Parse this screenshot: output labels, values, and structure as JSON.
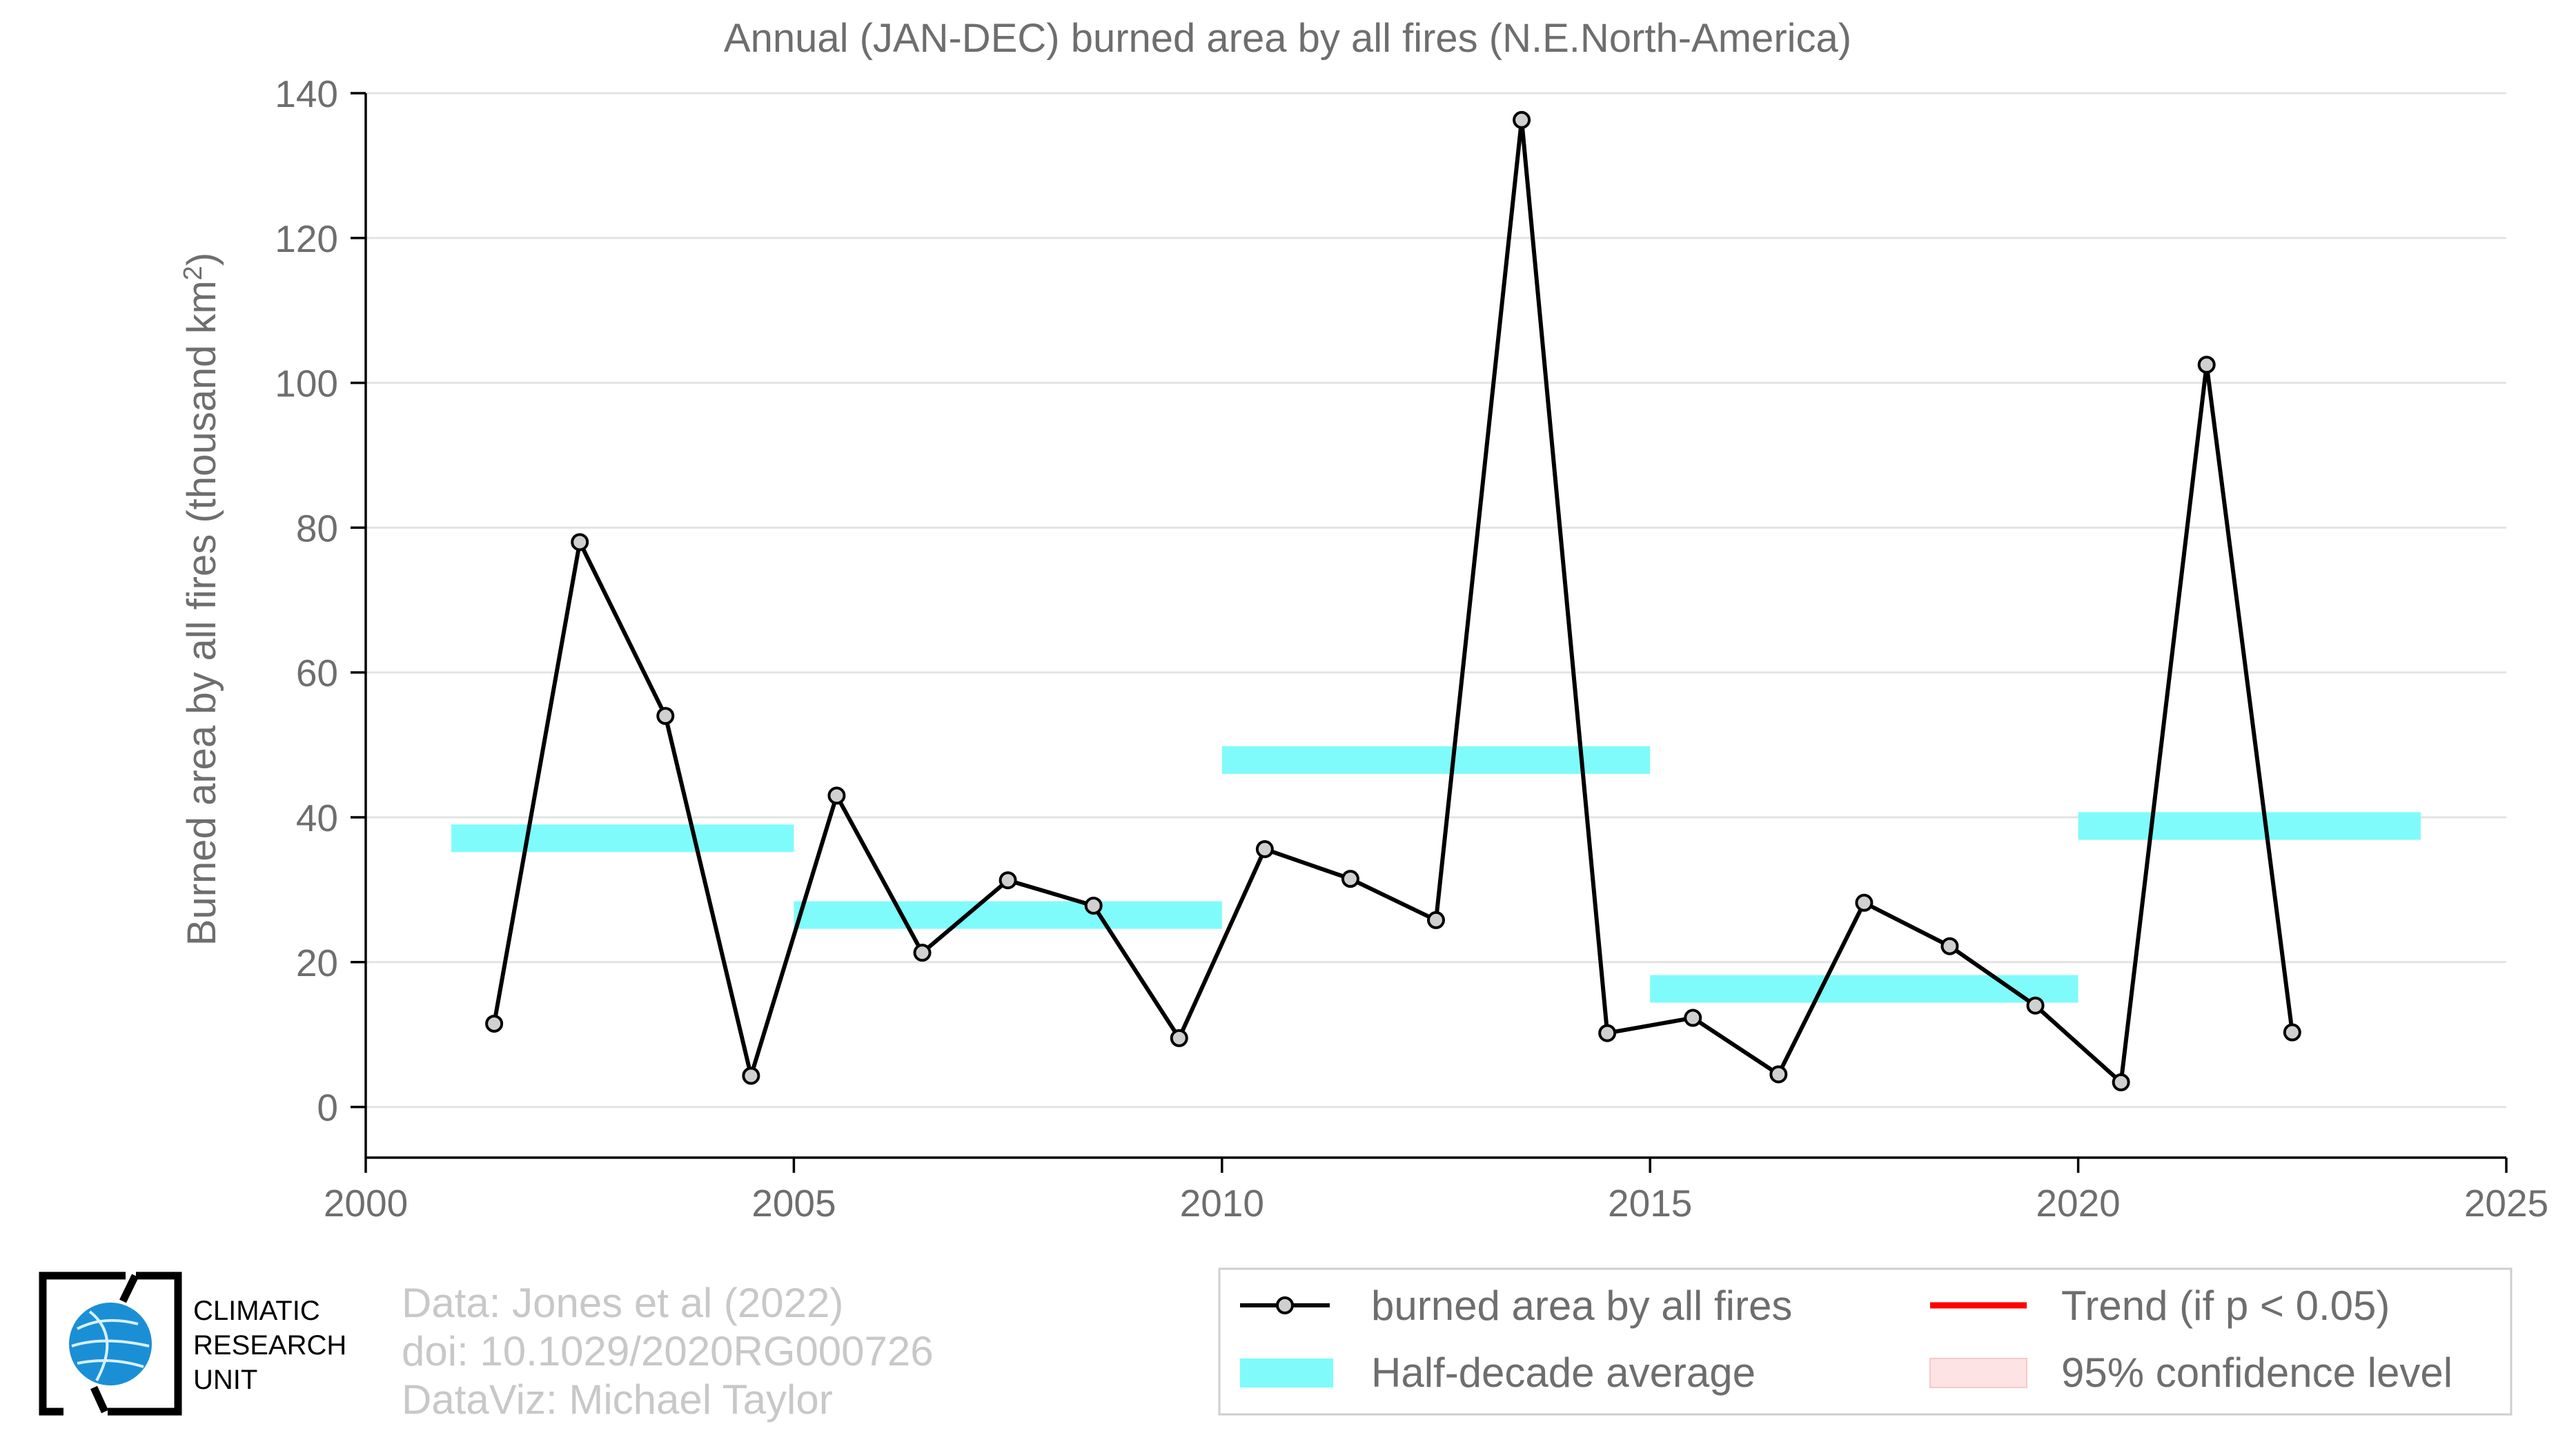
{
  "chart_data": {
    "type": "line",
    "title": "Annual (JAN-DEC) burned area by all fires (N.E.North-America)",
    "ylabel_main": "Burned area by all fires (thousand km",
    "ylabel_sup": "2",
    "ylabel_end": ")",
    "xlim": [
      2000,
      2025
    ],
    "ylim": [
      -7,
      140
    ],
    "xticks": [
      2000,
      2005,
      2010,
      2015,
      2020,
      2025
    ],
    "xtick_labels": [
      "2000",
      "2005",
      "2010",
      "2015",
      "2020",
      "2025"
    ],
    "yticks": [
      0,
      20,
      40,
      60,
      80,
      100,
      120,
      140
    ],
    "ytick_labels": [
      "0",
      "20",
      "40",
      "60",
      "80",
      "100",
      "120",
      "140"
    ],
    "grid": true,
    "series": [
      {
        "name": "burned area by all fires",
        "color": "#000000",
        "marker_fill": "#d0d0d0",
        "x": [
          2001.5,
          2002.5,
          2003.5,
          2004.5,
          2005.5,
          2006.5,
          2007.5,
          2008.5,
          2009.5,
          2010.5,
          2011.5,
          2012.5,
          2013.5,
          2014.5,
          2015.5,
          2016.5,
          2017.5,
          2018.5,
          2019.5,
          2020.5,
          2021.5,
          2022.5
        ],
        "y": [
          11.5,
          78,
          54,
          4.3,
          43,
          21.3,
          31.3,
          27.8,
          9.5,
          35.6,
          31.5,
          25.8,
          136.3,
          10.2,
          12.3,
          4.5,
          28.2,
          22.2,
          14,
          3.4,
          102.5,
          10.3
        ]
      }
    ],
    "half_decade_average": {
      "name": "Half-decade average",
      "color": "#7ffbfb",
      "segments": [
        {
          "x0": 2001,
          "x1": 2005,
          "y": 37.1
        },
        {
          "x0": 2005,
          "x1": 2010,
          "y": 26.5
        },
        {
          "x0": 2010,
          "x1": 2015,
          "y": 47.9
        },
        {
          "x0": 2015,
          "x1": 2020,
          "y": 16.3
        },
        {
          "x0": 2020,
          "x1": 2024,
          "y": 38.8
        }
      ]
    },
    "legend": {
      "placement": "bottom-right",
      "items": [
        {
          "label": "burned area by all fires",
          "kind": "line-marker",
          "color": "#000000"
        },
        {
          "label": "Trend (if p < 0.05)",
          "kind": "line",
          "color": "#ff0000"
        },
        {
          "label": "Half-decade average",
          "kind": "band",
          "color": "#7ffbfb"
        },
        {
          "label": "95% confidence level",
          "kind": "band",
          "color": "#fde3e3"
        }
      ]
    }
  },
  "credits": {
    "line1": "Data: Jones et al (2022)",
    "line2": "doi: 10.1029/2020RG000726",
    "line3": "DataViz: Michael Taylor"
  },
  "logo": {
    "line1": "CLIMATIC",
    "line2": "RESEARCH",
    "line3": "UNIT",
    "globe_color": "#1b8fd6"
  }
}
